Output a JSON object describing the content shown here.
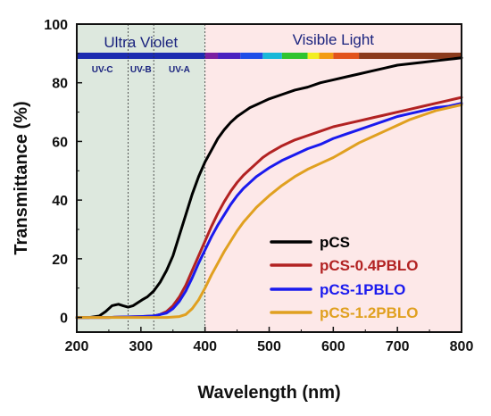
{
  "chart_data": {
    "type": "line",
    "xlabel": "Wavelength (nm)",
    "ylabel": "Transmittance (%)",
    "xlim": [
      200,
      800
    ],
    "ylim": [
      -5,
      100
    ],
    "x_ticks": [
      200,
      300,
      400,
      500,
      600,
      700,
      800
    ],
    "y_ticks": [
      0,
      20,
      40,
      60,
      80,
      100
    ],
    "grid": false,
    "legend_position": "bottom-right",
    "regions": {
      "uv_label": "Ultra Violet",
      "visible_label": "Visible Light",
      "uv_range": [
        200,
        400
      ],
      "visible_range": [
        400,
        800
      ],
      "uv_color": "#dde8de",
      "visible_color": "#fde8e8",
      "uv_subregions": [
        {
          "label": "UV-C",
          "range": [
            200,
            280
          ]
        },
        {
          "label": "UV-B",
          "range": [
            280,
            320
          ]
        },
        {
          "label": "UV-A",
          "range": [
            320,
            400
          ]
        }
      ]
    },
    "series": [
      {
        "name": "pCS",
        "color": "#000000",
        "x": [
          200,
          220,
          235,
          245,
          255,
          265,
          272,
          280,
          288,
          295,
          302,
          310,
          320,
          330,
          340,
          350,
          360,
          370,
          380,
          390,
          400,
          410,
          420,
          430,
          440,
          450,
          460,
          470,
          480,
          490,
          500,
          520,
          540,
          560,
          580,
          600,
          620,
          640,
          660,
          680,
          700,
          720,
          740,
          760,
          780,
          800
        ],
        "y": [
          0,
          0,
          0.5,
          2,
          4,
          4.5,
          4,
          3.5,
          4,
          5,
          6,
          7,
          9,
          12,
          16,
          21,
          28,
          35,
          42,
          48,
          53,
          57,
          61,
          64,
          66.5,
          68.5,
          70,
          71.5,
          72.5,
          73.5,
          74.5,
          76,
          77.5,
          78.5,
          80,
          81,
          82,
          83,
          84,
          85,
          86,
          86.5,
          87,
          87.5,
          88,
          88.5
        ]
      },
      {
        "name": "pCS-0.4PBLO",
        "color": "#b22222",
        "x": [
          200,
          250,
          300,
          320,
          330,
          340,
          350,
          360,
          370,
          380,
          390,
          400,
          410,
          420,
          430,
          440,
          450,
          460,
          470,
          480,
          490,
          500,
          520,
          540,
          560,
          580,
          600,
          620,
          640,
          660,
          680,
          700,
          720,
          740,
          760,
          780,
          800
        ],
        "y": [
          0,
          0,
          0.3,
          0.5,
          1,
          2,
          4,
          7,
          11,
          16,
          21,
          26,
          31,
          35.5,
          39.5,
          43,
          46,
          48.5,
          50.5,
          52.5,
          54.5,
          56,
          58.5,
          60.5,
          62,
          63.5,
          65,
          66,
          67,
          68,
          69,
          70,
          71,
          72,
          73,
          74,
          75
        ]
      },
      {
        "name": "pCS-1PBLO",
        "color": "#1a1aee",
        "x": [
          200,
          250,
          300,
          320,
          330,
          340,
          350,
          360,
          370,
          380,
          390,
          400,
          410,
          420,
          430,
          440,
          450,
          460,
          470,
          480,
          490,
          500,
          520,
          540,
          560,
          580,
          600,
          620,
          640,
          660,
          680,
          700,
          720,
          740,
          760,
          780,
          800
        ],
        "y": [
          0,
          0,
          0.3,
          0.5,
          1,
          1.5,
          3,
          5.5,
          9,
          13.5,
          18.5,
          23,
          27.5,
          31.5,
          35,
          38.5,
          41.5,
          44,
          46,
          48,
          49.5,
          51,
          53.5,
          55.5,
          57.5,
          59,
          61,
          62.5,
          64,
          65.5,
          67,
          68.5,
          69.5,
          70.5,
          71.5,
          72,
          73
        ]
      },
      {
        "name": "pCS-1.2PBLO",
        "color": "#e0a020",
        "x": [
          200,
          250,
          300,
          340,
          360,
          370,
          380,
          390,
          400,
          410,
          420,
          430,
          440,
          450,
          460,
          470,
          480,
          490,
          500,
          520,
          540,
          560,
          580,
          600,
          620,
          640,
          660,
          680,
          700,
          720,
          740,
          760,
          780,
          800
        ],
        "y": [
          0,
          0,
          0,
          0,
          0.3,
          1,
          3,
          6,
          10,
          14.5,
          18.5,
          22.5,
          26,
          29.5,
          32.5,
          35,
          37.5,
          39.5,
          41.5,
          45,
          48,
          50.5,
          52.5,
          54.5,
          57,
          59.5,
          61.5,
          63.5,
          65.5,
          67.5,
          69,
          70.5,
          71.5,
          72.5
        ]
      }
    ],
    "spectrum_bar": {
      "segments": [
        {
          "range": [
            200,
            400
          ],
          "color": "#1c2bb0"
        },
        {
          "range": [
            400,
            420
          ],
          "color": "#7b1fa2"
        },
        {
          "range": [
            420,
            455
          ],
          "color": "#4a20c0"
        },
        {
          "range": [
            455,
            490
          ],
          "color": "#1f4ee8"
        },
        {
          "range": [
            490,
            520
          ],
          "color": "#18b8d8"
        },
        {
          "range": [
            520,
            560
          ],
          "color": "#2fc42f"
        },
        {
          "range": [
            560,
            578
          ],
          "color": "#f2ee22"
        },
        {
          "range": [
            578,
            600
          ],
          "color": "#f39c12"
        },
        {
          "range": [
            600,
            640
          ],
          "color": "#e2531c"
        },
        {
          "range": [
            640,
            800
          ],
          "color": "#8b3a1c"
        }
      ]
    }
  }
}
